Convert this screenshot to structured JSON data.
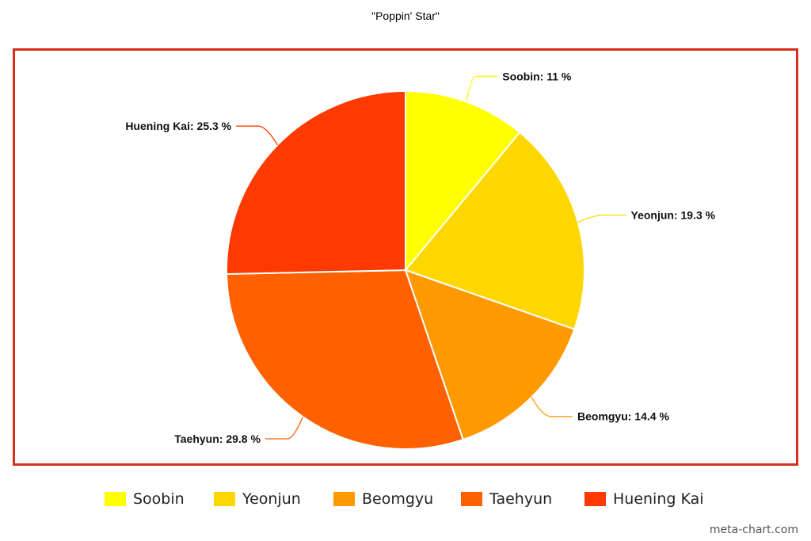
{
  "chart_data": {
    "type": "pie",
    "title": "\"Poppin' Star\"",
    "categories": [
      "Soobin",
      "Yeonjun",
      "Beomgyu",
      "Taehyun",
      "Huening Kai"
    ],
    "values": [
      11,
      19.3,
      14.4,
      29.8,
      25.3
    ],
    "slice_labels": [
      "Soobin: 11 %",
      "Yeonjun: 19.3 %",
      "Beomgyu: 14.4 %",
      "Taehyun: 29.8 %",
      "Huening Kai: 25.3 %"
    ],
    "colors": [
      "#ffff00",
      "#ffd700",
      "#ff9900",
      "#ff6000",
      "#ff3a00"
    ],
    "legend_position": "bottom",
    "start_angle": "top, clockwise"
  },
  "frame_color": "#d62f1a",
  "watermark": "meta-chart.com"
}
